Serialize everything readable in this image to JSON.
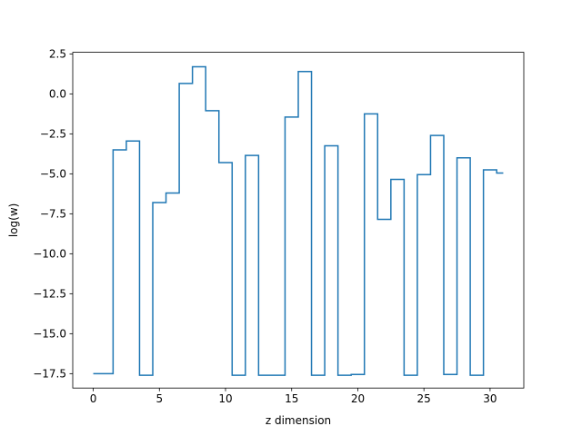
{
  "chart_data": {
    "type": "line",
    "drawstyle": "steps-mid",
    "title": "",
    "xlabel": "z dimension",
    "ylabel": "log(w)",
    "xlim": [
      -1.55,
      32.55
    ],
    "ylim": [
      -18.4,
      2.6
    ],
    "grid": false,
    "line_color": "#1f77b4",
    "x_ticks": [
      0,
      5,
      10,
      15,
      20,
      25,
      30
    ],
    "x_tick_labels": [
      "0",
      "5",
      "10",
      "15",
      "20",
      "25",
      "30"
    ],
    "y_ticks": [
      2.5,
      0,
      -2.5,
      -5,
      -7.5,
      -10,
      -12.5,
      -15,
      -17.5
    ],
    "y_tick_labels": [
      "2.5",
      "0.0",
      "−2.5",
      "−5.0",
      "−7.5",
      "−10.0",
      "−12.5",
      "−15.0",
      "−17.5"
    ],
    "x": [
      0,
      1,
      2,
      3,
      4,
      5,
      6,
      7,
      8,
      9,
      10,
      11,
      12,
      13,
      14,
      15,
      16,
      17,
      18,
      19,
      20,
      21,
      22,
      23,
      24,
      25,
      26,
      27,
      28,
      29,
      30,
      31
    ],
    "y": [
      -17.5,
      -17.5,
      -3.5,
      -2.95,
      -17.6,
      -6.8,
      -6.2,
      0.65,
      1.7,
      -1.05,
      -4.3,
      -17.6,
      -3.85,
      -17.6,
      -17.6,
      -1.45,
      1.4,
      -17.6,
      -3.25,
      -17.6,
      -17.55,
      -1.25,
      -7.85,
      -5.35,
      -17.6,
      -5.05,
      -2.6,
      -17.55,
      -4.0,
      -17.6,
      -4.75,
      -4.95
    ]
  }
}
